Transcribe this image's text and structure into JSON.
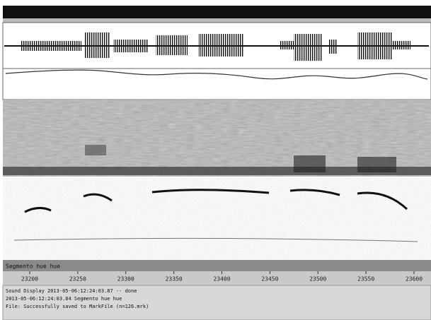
{
  "label_bar": {
    "text": "Segmento hue hue"
  },
  "time_axis": {
    "ticks": [
      "23200",
      "23250",
      "23300",
      "23350",
      "23400",
      "23450",
      "23500",
      "23550",
      "23600"
    ]
  },
  "status": {
    "lines": [
      "Sound Display 2013-05-06:12:24:03.87 -- done",
      "2013-05-06:12:24:03.84 Segmento hue hue",
      "File: Successfully saved to MarkFile (n=126.mrk)"
    ]
  }
}
